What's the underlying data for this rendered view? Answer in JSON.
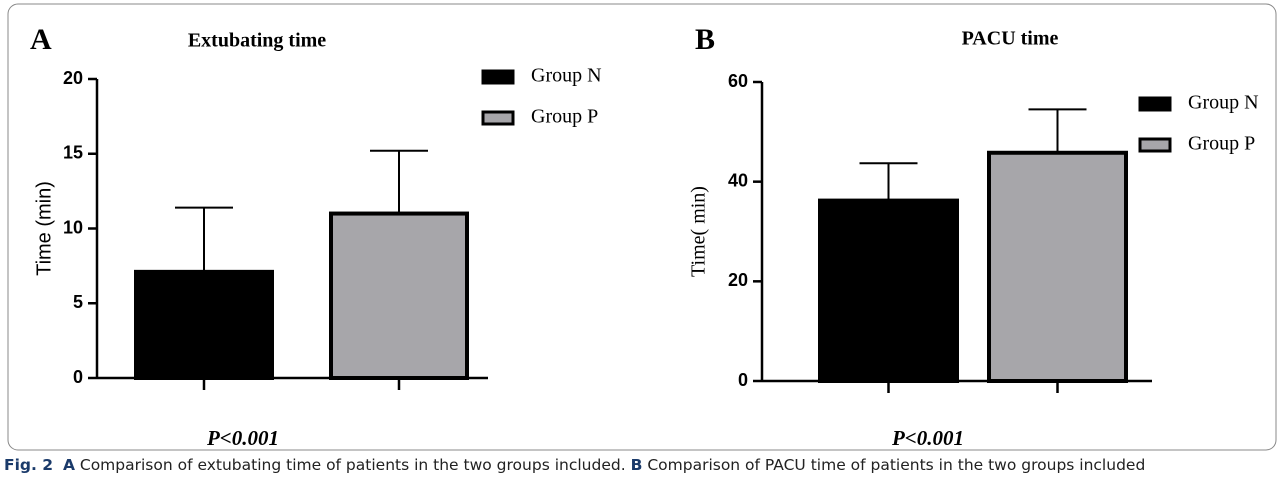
{
  "chart_data": [
    {
      "type": "bar",
      "panel": "A",
      "title": "Extubating time",
      "y_label": "Time (min)",
      "ylim": [
        0,
        20
      ],
      "yticks": [
        0,
        5,
        10,
        15,
        20
      ],
      "annotation": "P<0.001",
      "series": [
        {
          "name": "Group N",
          "color": "#000000",
          "values": [
            7.1
          ],
          "errors": [
            4.3
          ]
        },
        {
          "name": "Group P",
          "color": "#a7a6aa",
          "values": [
            11.0
          ],
          "errors": [
            4.2
          ]
        }
      ]
    },
    {
      "type": "bar",
      "panel": "B",
      "title": "PACU time",
      "y_label": "Time( min)",
      "ylim": [
        0,
        60
      ],
      "yticks": [
        0,
        20,
        40,
        60
      ],
      "annotation": "P<0.001",
      "series": [
        {
          "name": "Group N",
          "color": "#000000",
          "values": [
            36.2
          ],
          "errors": [
            7.5
          ]
        },
        {
          "name": "Group P",
          "color": "#a7a6aa",
          "values": [
            45.8
          ],
          "errors": [
            8.7
          ]
        }
      ]
    }
  ],
  "caption": {
    "label": "Fig. 2",
    "parts": [
      {
        "label": "A",
        "text": "Comparison of extubating time of patients in the two groups included."
      },
      {
        "label": "B",
        "text": "Comparison of PACU time of patients in the two groups included"
      }
    ]
  }
}
